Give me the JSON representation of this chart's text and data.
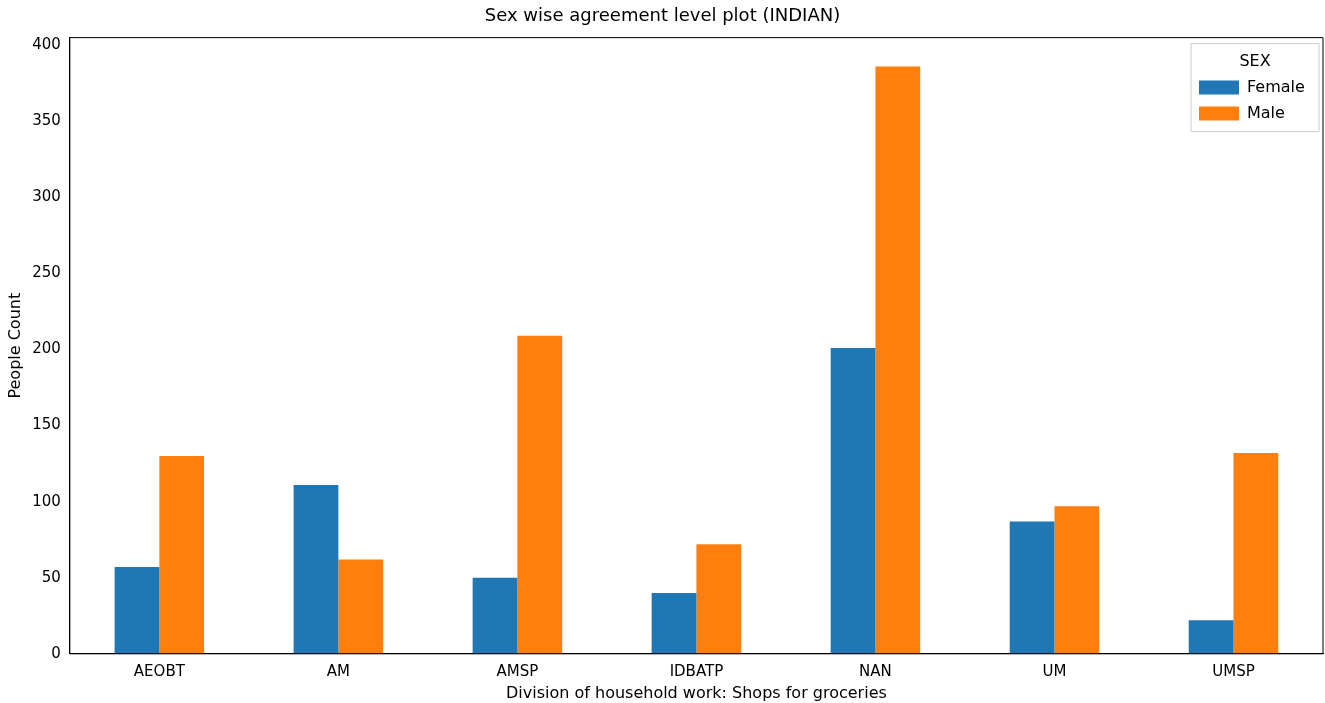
{
  "chart_data": {
    "type": "bar",
    "title": "Sex wise agreement level plot (INDIAN)",
    "xlabel": "Division of household work: Shops for groceries",
    "ylabel": "People Count",
    "legend_title": "SEX",
    "legend": "top right",
    "grid": false,
    "categories": [
      "AEOBT",
      "AM",
      "AMSP",
      "IDBATP",
      "NAN",
      "UM",
      "UMSP"
    ],
    "ylim": [
      0,
      405
    ],
    "yticks": [
      0,
      50,
      100,
      150,
      200,
      250,
      300,
      350,
      400
    ],
    "series": [
      {
        "name": "Female",
        "color": "#1f77b4",
        "values": [
          57,
          111,
          50,
          40,
          201,
          87,
          22
        ]
      },
      {
        "name": "Male",
        "color": "#ff7f0e",
        "values": [
          130,
          62,
          209,
          72,
          386,
          97,
          132
        ]
      }
    ]
  }
}
